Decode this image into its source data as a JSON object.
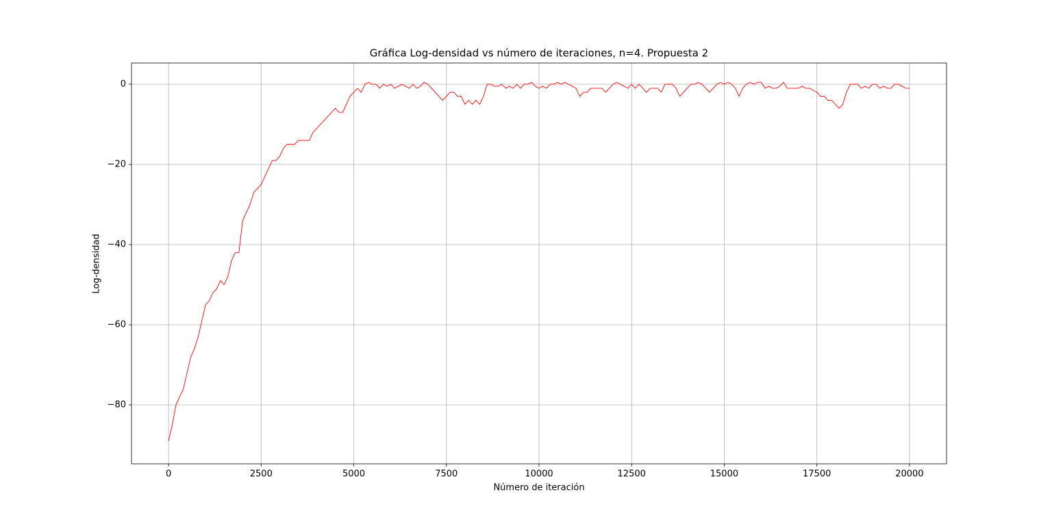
{
  "chart_data": {
    "type": "line",
    "title": "Gráfica Log-densidad vs número de iteraciones, n=4. Propuesta 2",
    "x_label": "Número de iteración",
    "y_label": "Log-densidad",
    "xlim": [
      -1000,
      21000
    ],
    "ylim": [
      -94.7,
      5.3
    ],
    "xticks": [
      0,
      2500,
      5000,
      7500,
      10000,
      12500,
      15000,
      17500,
      20000
    ],
    "yticks": [
      {
        "value": -80,
        "label": "−80"
      },
      {
        "value": -60,
        "label": "−60"
      },
      {
        "value": -40,
        "label": "−40"
      },
      {
        "value": -20,
        "label": "−20"
      },
      0
    ],
    "grid": true,
    "x": [
      0,
      100,
      200,
      300,
      400,
      500,
      600,
      700,
      800,
      900,
      1000,
      1100,
      1200,
      1300,
      1400,
      1500,
      1600,
      1700,
      1800,
      1900,
      2000,
      2100,
      2200,
      2300,
      2400,
      2500,
      2600,
      2700,
      2800,
      2900,
      3000,
      3100,
      3200,
      3300,
      3400,
      3500,
      3600,
      3700,
      3800,
      3900,
      4000,
      4100,
      4200,
      4300,
      4400,
      4500,
      4600,
      4700,
      4800,
      4900,
      5000,
      5100,
      5200,
      5300,
      5400,
      5500,
      5600,
      5700,
      5800,
      5900,
      6000,
      6100,
      6200,
      6300,
      6400,
      6500,
      6600,
      6700,
      6800,
      6900,
      7000,
      7100,
      7200,
      7300,
      7400,
      7500,
      7600,
      7700,
      7800,
      7900,
      8000,
      8100,
      8200,
      8300,
      8400,
      8500,
      8600,
      8700,
      8800,
      8900,
      9000,
      9100,
      9200,
      9300,
      9400,
      9500,
      9600,
      9700,
      9800,
      9900,
      10000,
      10100,
      10200,
      10300,
      10400,
      10500,
      10600,
      10700,
      10800,
      10900,
      11000,
      11100,
      11200,
      11300,
      11400,
      11500,
      11600,
      11700,
      11800,
      11900,
      12000,
      12100,
      12200,
      12300,
      12400,
      12500,
      12600,
      12700,
      12800,
      12900,
      13000,
      13100,
      13200,
      13300,
      13400,
      13500,
      13600,
      13700,
      13800,
      13900,
      14000,
      14100,
      14200,
      14300,
      14400,
      14500,
      14600,
      14700,
      14800,
      14900,
      15000,
      15100,
      15200,
      15300,
      15400,
      15500,
      15600,
      15700,
      15800,
      15900,
      16000,
      16100,
      16200,
      16300,
      16400,
      16500,
      16600,
      16700,
      16800,
      16900,
      17000,
      17100,
      17200,
      17300,
      17400,
      17500,
      17600,
      17700,
      17800,
      17900,
      18000,
      18100,
      18200,
      18300,
      18400,
      18500,
      18600,
      18700,
      18800,
      18900,
      19000,
      19100,
      19200,
      19300,
      19400,
      19500,
      19600,
      19700,
      19800,
      19900,
      20000
    ],
    "series": [
      {
        "color": "#ff0000",
        "values": [
          -89,
          -85,
          -80,
          -78,
          -76,
          -72,
          -68,
          -66,
          -63,
          -59,
          -55,
          -54,
          -52,
          -51,
          -49,
          -50,
          -48,
          -44,
          -42,
          -42,
          -34,
          -32,
          -30,
          -27,
          -26,
          -25,
          -23,
          -21,
          -19,
          -19,
          -18,
          -16,
          -15,
          -15,
          -15,
          -14,
          -14,
          -14,
          -14,
          -12,
          -11,
          -10,
          -9,
          -8,
          -7,
          -6,
          -7,
          -7,
          -5,
          -3,
          -2,
          -1,
          -2,
          0,
          0.5,
          0,
          0,
          -1,
          0,
          -0.5,
          0,
          -1,
          -0.5,
          0,
          -0.5,
          -1,
          0,
          -1,
          -0.5,
          0.5,
          0,
          -1,
          -2,
          -3,
          -4,
          -3,
          -2,
          -2,
          -3,
          -3,
          -5,
          -4,
          -5,
          -4,
          -5,
          -3,
          0,
          0,
          -0.5,
          -0.5,
          0,
          -1,
          -0.5,
          -1,
          0,
          -1,
          0,
          0,
          0.5,
          -0.5,
          -1,
          -0.5,
          -1,
          0,
          0,
          0.5,
          0,
          0.5,
          0,
          -0.5,
          -1,
          -3,
          -2,
          -2,
          -1,
          -1,
          -1,
          -1,
          -2,
          -1,
          0,
          0.5,
          0,
          -0.5,
          -1,
          0,
          -1,
          0,
          -1,
          -2,
          -1,
          -1,
          -1,
          -2,
          0,
          0,
          0,
          -1,
          -3,
          -2,
          -1,
          0,
          0,
          0.5,
          0,
          -1,
          -2,
          -1,
          0,
          0.5,
          0,
          0.5,
          0,
          -1,
          -3,
          -1,
          0,
          0.5,
          0,
          0.5,
          0.5,
          -1,
          -0.5,
          -1,
          -1,
          -0.5,
          0.5,
          -1,
          -1,
          -1,
          -1,
          -0.5,
          -1,
          -1,
          -1.5,
          -2,
          -3,
          -3,
          -4,
          -4,
          -5,
          -6,
          -5,
          -2,
          0,
          0,
          0,
          -1,
          -0.5,
          -1,
          0,
          0,
          -1,
          -0.5,
          -1,
          -1,
          0,
          0,
          -0.5,
          -1,
          -1
        ]
      }
    ]
  }
}
